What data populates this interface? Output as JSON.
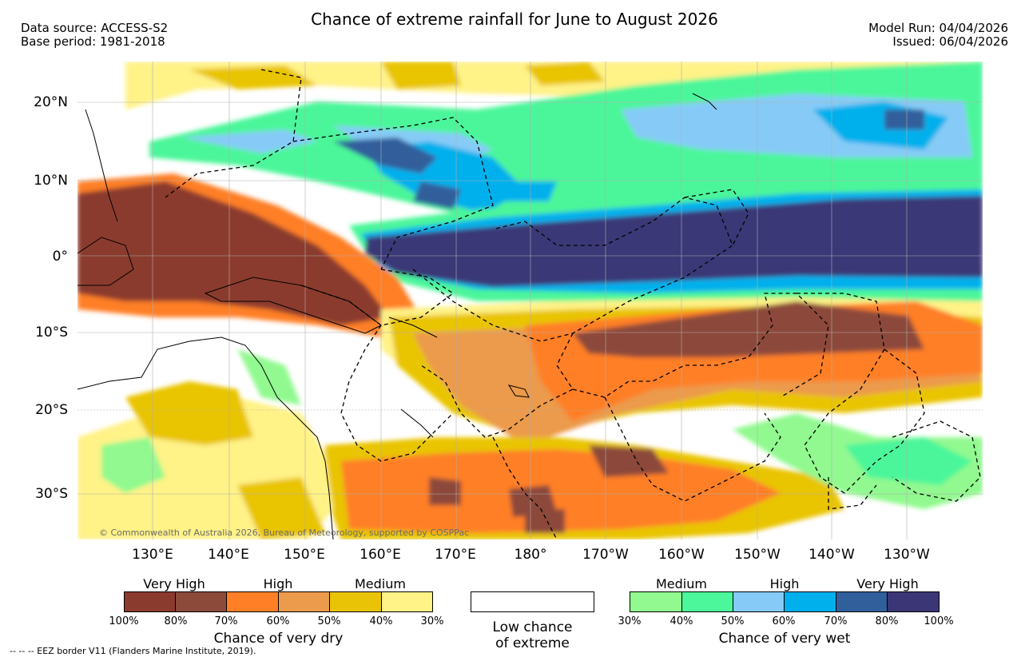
{
  "header": {
    "title": "Chance of extreme rainfall for June to August 2026",
    "data_source": "Data source: ACCESS-S2",
    "base_period": "Base period: 1981-2018",
    "model_run": "Model Run: 04/04/2026",
    "issued": "Issued: 06/04/2026"
  },
  "map": {
    "credit": "© Commonwealth of Australia 2026, Bureau of Meteorology, supported by COSPPac",
    "lat_labels": [
      "20°N",
      "10°N",
      "0°",
      "10°S",
      "20°S",
      "30°S"
    ],
    "lon_labels": [
      "130°E",
      "140°E",
      "150°E",
      "160°E",
      "170°E",
      "180°",
      "170°W",
      "160°W",
      "150°W",
      "140°W",
      "130°W"
    ]
  },
  "legend": {
    "dry": {
      "levels": [
        "Very High",
        "High",
        "Medium"
      ],
      "ticks": [
        "100%",
        "80%",
        "70%",
        "60%",
        "50%",
        "40%",
        "30%"
      ],
      "caption": "Chance of very dry",
      "colors": [
        "#8b3a2e",
        "#8c4a3a",
        "#ff7f27",
        "#ec9a4b",
        "#e9c406",
        "#fff287"
      ]
    },
    "low": {
      "caption_line1": "Low chance",
      "caption_line2": "of extreme"
    },
    "wet": {
      "levels": [
        "Medium",
        "High",
        "Very High"
      ],
      "ticks": [
        "30%",
        "40%",
        "50%",
        "60%",
        "70%",
        "80%",
        "100%"
      ],
      "caption": "Chance of very wet",
      "colors": [
        "#91f98f",
        "#4cf69a",
        "#86cbf7",
        "#00b0ec",
        "#315f9b",
        "#3b3777"
      ]
    }
  },
  "footer": {
    "eez_note": "--  --  -- EEZ border V11 (Flanders Marine Institute, 2019)."
  }
}
